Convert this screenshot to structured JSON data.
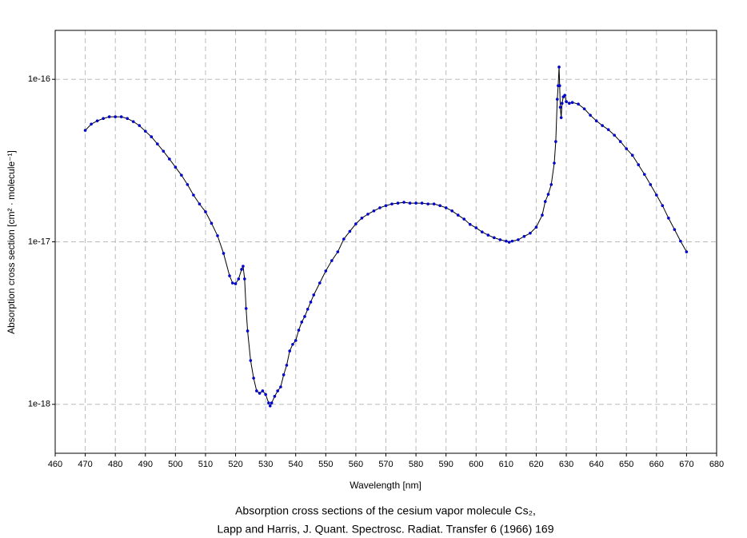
{
  "chart_data": {
    "type": "line",
    "xlabel": "Wavelength [nm]",
    "ylabel": "Absorption cross section [cm² · molecule⁻¹]",
    "caption": [
      "Absorption cross sections of the cesium vapor molecule Cs₂,",
      "Lapp and Harris, J. Quant. Spectrosc. Radiat. Transfer 6 (1966) 169"
    ],
    "xlim": [
      460,
      680
    ],
    "xticks": [
      460,
      470,
      480,
      490,
      500,
      510,
      520,
      530,
      540,
      550,
      560,
      570,
      580,
      590,
      600,
      610,
      620,
      630,
      640,
      650,
      660,
      670,
      680
    ],
    "ylim": [
      5e-19,
      2e-16
    ],
    "yticks": [
      1e-18,
      1e-17,
      1e-16
    ],
    "ylog": true,
    "grid": true,
    "x": [
      470,
      472,
      474,
      476,
      478,
      480,
      482,
      484,
      486,
      488,
      490,
      492,
      494,
      496,
      498,
      500,
      502,
      504,
      506,
      508,
      510,
      512,
      514,
      516,
      518,
      519,
      520,
      521,
      522,
      522.5,
      523,
      523.5,
      524,
      525,
      526,
      527,
      528,
      529,
      530,
      531,
      531.5,
      532,
      533,
      534,
      535,
      536,
      537,
      538,
      539,
      540,
      541,
      542,
      543,
      544,
      545,
      546,
      548,
      550,
      552,
      554,
      556,
      558,
      560,
      562,
      564,
      566,
      568,
      570,
      572,
      574,
      576,
      578,
      580,
      582,
      584,
      586,
      588,
      590,
      592,
      594,
      596,
      598,
      600,
      602,
      604,
      606,
      608,
      610,
      611,
      612,
      614,
      616,
      618,
      620,
      622,
      623,
      624,
      625,
      626,
      626.5,
      627,
      627.3,
      627.6,
      627.8,
      628,
      628.3,
      628.6,
      629,
      629.5,
      630,
      631,
      632,
      634,
      636,
      638,
      640,
      642,
      644,
      646,
      648,
      650,
      652,
      654,
      656,
      658,
      660,
      662,
      664,
      666,
      668,
      670
    ],
    "series": [
      {
        "color": "#0000cc",
        "values": [
          4.85e-17,
          5.3e-17,
          5.55e-17,
          5.74e-17,
          5.88e-17,
          5.88e-17,
          5.88e-17,
          5.74e-17,
          5.49e-17,
          5.19e-17,
          4.79e-17,
          4.43e-17,
          4e-17,
          3.61e-17,
          3.23e-17,
          2.88e-17,
          2.57e-17,
          2.25e-17,
          1.94e-17,
          1.71e-17,
          1.53e-17,
          1.3e-17,
          1.09e-17,
          8.49e-18,
          6.18e-18,
          5.58e-18,
          5.52e-18,
          5.91e-18,
          6.77e-18,
          7.08e-18,
          5.91e-18,
          3.89e-18,
          2.83e-18,
          1.86e-18,
          1.45e-18,
          1.21e-18,
          1.17e-18,
          1.21e-18,
          1.15e-18,
          1.02e-18,
          9.78e-19,
          1.02e-18,
          1.12e-18,
          1.21e-18,
          1.28e-18,
          1.52e-18,
          1.74e-18,
          2.13e-18,
          2.34e-18,
          2.47e-18,
          2.86e-18,
          3.21e-18,
          3.47e-18,
          3.85e-18,
          4.26e-18,
          4.71e-18,
          5.58e-18,
          6.62e-18,
          7.66e-18,
          8.68e-18,
          1.04e-17,
          1.16e-17,
          1.29e-17,
          1.4e-17,
          1.48e-17,
          1.55e-17,
          1.62e-17,
          1.67e-17,
          1.71e-17,
          1.73e-17,
          1.75e-17,
          1.73e-17,
          1.73e-17,
          1.73e-17,
          1.71e-17,
          1.71e-17,
          1.67e-17,
          1.62e-17,
          1.55e-17,
          1.46e-17,
          1.38e-17,
          1.28e-17,
          1.22e-17,
          1.15e-17,
          1.1e-17,
          1.06e-17,
          1.03e-17,
          1.01e-17,
          9.94e-18,
          1.01e-17,
          1.03e-17,
          1.08e-17,
          1.13e-17,
          1.23e-17,
          1.46e-17,
          1.77e-17,
          1.96e-17,
          2.25e-17,
          3.05e-17,
          4.14e-17,
          7.54e-17,
          9.13e-17,
          1.19e-16,
          9.13e-17,
          6.73e-17,
          5.81e-17,
          7.12e-17,
          7.8e-17,
          7.98e-17,
          7.29e-17,
          7.12e-17,
          7.2e-17,
          7.04e-17,
          6.58e-17,
          6.01e-17,
          5.55e-17,
          5.19e-17,
          4.9e-17,
          4.53e-17,
          4.14e-17,
          3.74e-17,
          3.41e-17,
          2.98e-17,
          2.6e-17,
          2.25e-17,
          1.94e-17,
          1.67e-17,
          1.4e-17,
          1.19e-17,
          1.01e-17,
          8.68e-18
        ]
      }
    ]
  }
}
